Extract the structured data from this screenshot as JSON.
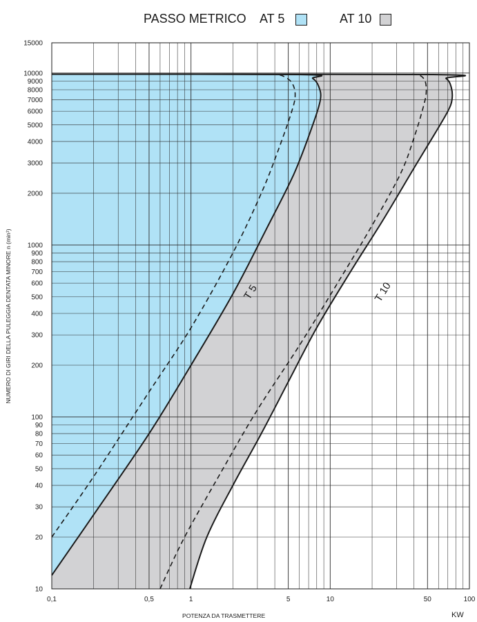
{
  "title": {
    "main": "PASSO METRICO",
    "legend": [
      {
        "label": "AT 5",
        "color": "#b0e2f6"
      },
      {
        "label": "AT 10",
        "color": "#d2d2d4"
      }
    ]
  },
  "axis": {
    "xlabel": "POTENZA DA TRASMETTERE",
    "xunit": "KW",
    "ylabel": "NUMERO DI GIRI DELLA PULEGGIA DENTATA MINORE n (min¹)"
  },
  "chart_data": {
    "type": "area",
    "xscale": "log",
    "yscale": "log",
    "xlim": [
      0.1,
      100
    ],
    "ylim": [
      10,
      15000
    ],
    "grid": true,
    "xticks": [
      {
        "v": 0.1,
        "label": "0,1"
      },
      {
        "v": 0.5,
        "label": "0,5"
      },
      {
        "v": 1,
        "label": "1"
      },
      {
        "v": 5,
        "label": "5"
      },
      {
        "v": 10,
        "label": "10"
      },
      {
        "v": 50,
        "label": "50"
      },
      {
        "v": 100,
        "label": "100"
      }
    ],
    "yticks": [
      {
        "v": 10,
        "label": "10"
      },
      {
        "v": 20,
        "label": "20"
      },
      {
        "v": 30,
        "label": "30"
      },
      {
        "v": 40,
        "label": "40"
      },
      {
        "v": 50,
        "label": "50"
      },
      {
        "v": 60,
        "label": "60"
      },
      {
        "v": 70,
        "label": "70"
      },
      {
        "v": 80,
        "label": "80"
      },
      {
        "v": 90,
        "label": "90"
      },
      {
        "v": 100,
        "label": "100"
      },
      {
        "v": 200,
        "label": "200"
      },
      {
        "v": 300,
        "label": "300"
      },
      {
        "v": 400,
        "label": "400"
      },
      {
        "v": 500,
        "label": "500"
      },
      {
        "v": 600,
        "label": "600"
      },
      {
        "v": 700,
        "label": "700"
      },
      {
        "v": 800,
        "label": "800"
      },
      {
        "v": 900,
        "label": "900"
      },
      {
        "v": 1000,
        "label": "1000"
      },
      {
        "v": 2000,
        "label": "2000"
      },
      {
        "v": 3000,
        "label": "3000"
      },
      {
        "v": 4000,
        "label": "4000"
      },
      {
        "v": 5000,
        "label": "5000"
      },
      {
        "v": 6000,
        "label": "6000"
      },
      {
        "v": 7000,
        "label": "7000"
      },
      {
        "v": 8000,
        "label": "8000"
      },
      {
        "v": 9000,
        "label": "9000"
      },
      {
        "v": 10000,
        "label": "10000"
      },
      {
        "v": 15000,
        "label": "15000"
      }
    ],
    "series": [
      {
        "name": "AT 10",
        "kind": "region",
        "color": "#d2d2d4",
        "boundary": [
          [
            0.98,
            10
          ],
          [
            1.3,
            20
          ],
          [
            2.0,
            40
          ],
          [
            3.2,
            80
          ],
          [
            5.0,
            160
          ],
          [
            8.0,
            330
          ],
          [
            14,
            700
          ],
          [
            24,
            1400
          ],
          [
            40,
            2800
          ],
          [
            57,
            4500
          ],
          [
            70,
            6000
          ],
          [
            75,
            7000
          ],
          [
            74,
            8300
          ],
          [
            68,
            9300
          ],
          [
            55,
            9800
          ],
          [
            0.1,
            9850
          ]
        ]
      },
      {
        "name": "AT 5",
        "kind": "region",
        "color": "#b0e2f6",
        "boundary": [
          [
            0.1,
            12
          ],
          [
            0.2,
            27
          ],
          [
            0.5,
            80
          ],
          [
            1.0,
            200
          ],
          [
            2.0,
            520
          ],
          [
            3.5,
            1250
          ],
          [
            5.5,
            2600
          ],
          [
            7.5,
            5000
          ],
          [
            8.5,
            7000
          ],
          [
            8.3,
            8300
          ],
          [
            7.5,
            9300
          ],
          [
            6.0,
            9800
          ],
          [
            0.1,
            9850
          ]
        ]
      },
      {
        "name": "T 5",
        "kind": "dashed",
        "label": "T 5",
        "label_at": [
          2.8,
          520
        ],
        "points": [
          [
            0.1,
            20
          ],
          [
            0.2,
            45
          ],
          [
            0.5,
            140
          ],
          [
            1.0,
            330
          ],
          [
            2.0,
            900
          ],
          [
            3.2,
            2000
          ],
          [
            4.2,
            3500
          ],
          [
            5.3,
            6000
          ],
          [
            5.6,
            7500
          ],
          [
            5.3,
            8800
          ],
          [
            4.6,
            9600
          ],
          [
            4.0,
            9850
          ]
        ]
      },
      {
        "name": "T 10",
        "kind": "dashed",
        "label": "T 10",
        "label_at": [
          25,
          520
        ],
        "points": [
          [
            0.6,
            10
          ],
          [
            0.9,
            20
          ],
          [
            1.7,
            50
          ],
          [
            3.0,
            110
          ],
          [
            6.0,
            260
          ],
          [
            11,
            580
          ],
          [
            20,
            1300
          ],
          [
            32,
            2600
          ],
          [
            40,
            4200
          ],
          [
            47,
            6500
          ],
          [
            49,
            7800
          ],
          [
            48,
            9000
          ],
          [
            44,
            9700
          ],
          [
            38,
            9850
          ]
        ]
      }
    ]
  }
}
